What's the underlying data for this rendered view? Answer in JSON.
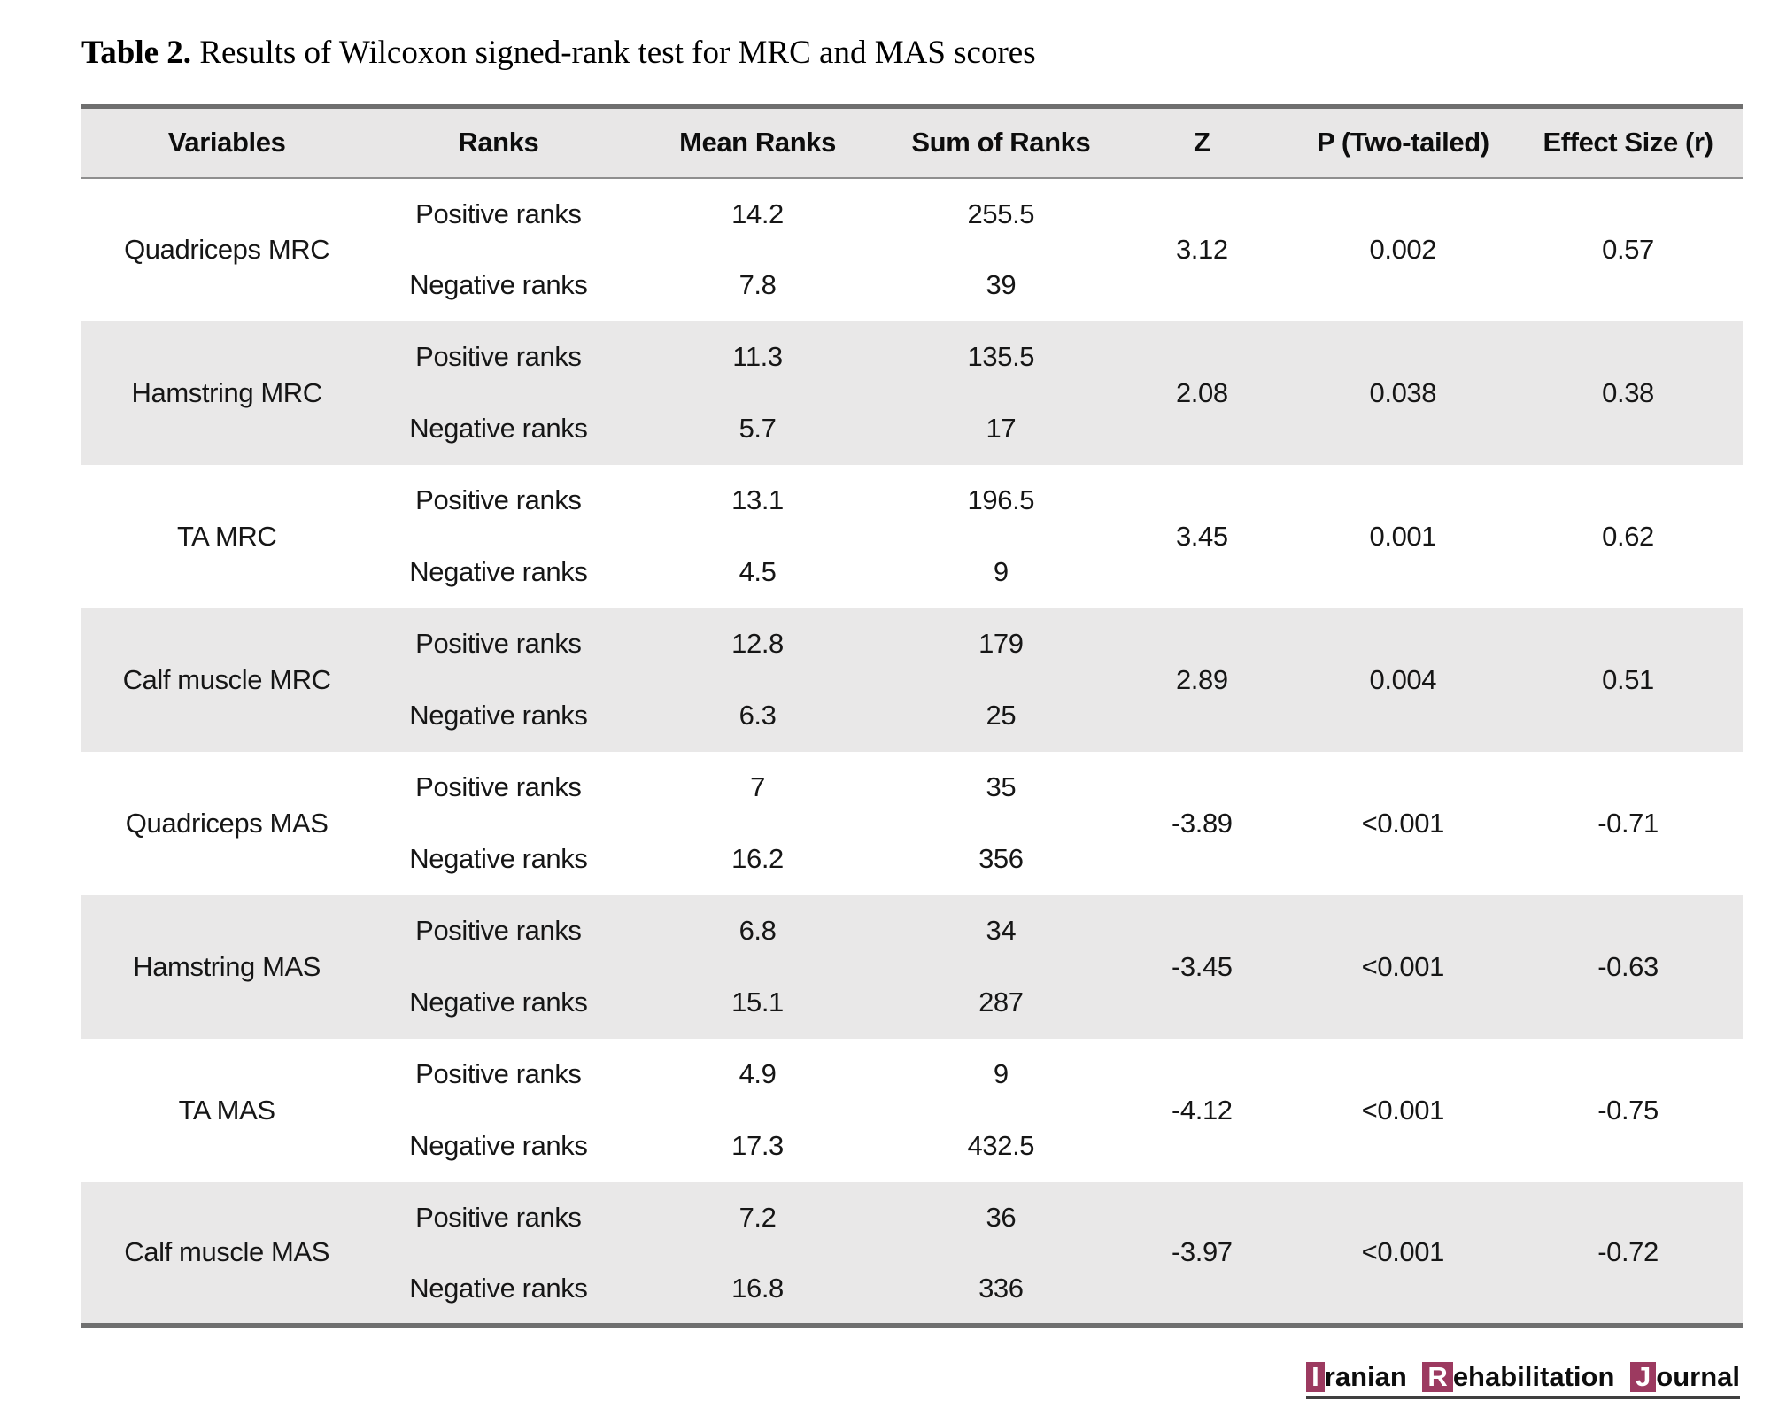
{
  "title": {
    "label": "Table 2.",
    "text": " Results of Wilcoxon signed-rank test for MRC and MAS scores"
  },
  "table": {
    "columns": [
      "Variables",
      "Ranks",
      "Mean Ranks",
      "Sum of Ranks",
      "Z",
      "P (Two-tailed)",
      "Effect Size (r)"
    ],
    "rank_labels": {
      "positive": "Positive ranks",
      "negative": "Negative ranks"
    },
    "rows": [
      {
        "variable": "Quadriceps MRC",
        "positive": {
          "mean_rank": "14.2",
          "sum_rank": "255.5"
        },
        "negative": {
          "mean_rank": "7.8",
          "sum_rank": "39"
        },
        "z": "3.12",
        "p": "0.002",
        "effect_size": "0.57"
      },
      {
        "variable": "Hamstring MRC",
        "positive": {
          "mean_rank": "11.3",
          "sum_rank": "135.5"
        },
        "negative": {
          "mean_rank": "5.7",
          "sum_rank": "17"
        },
        "z": "2.08",
        "p": "0.038",
        "effect_size": "0.38"
      },
      {
        "variable": "TA MRC",
        "positive": {
          "mean_rank": "13.1",
          "sum_rank": "196.5"
        },
        "negative": {
          "mean_rank": "4.5",
          "sum_rank": "9"
        },
        "z": "3.45",
        "p": "0.001",
        "effect_size": "0.62"
      },
      {
        "variable": "Calf muscle MRC",
        "positive": {
          "mean_rank": "12.8",
          "sum_rank": "179"
        },
        "negative": {
          "mean_rank": "6.3",
          "sum_rank": "25"
        },
        "z": "2.89",
        "p": "0.004",
        "effect_size": "0.51"
      },
      {
        "variable": "Quadriceps MAS",
        "positive": {
          "mean_rank": "7",
          "sum_rank": "35"
        },
        "negative": {
          "mean_rank": "16.2",
          "sum_rank": "356"
        },
        "z": "-3.89",
        "p": "<0.001",
        "effect_size": "-0.71"
      },
      {
        "variable": "Hamstring MAS",
        "positive": {
          "mean_rank": "6.8",
          "sum_rank": "34"
        },
        "negative": {
          "mean_rank": "15.1",
          "sum_rank": "287"
        },
        "z": "-3.45",
        "p": "<0.001",
        "effect_size": "-0.63"
      },
      {
        "variable": "TA MAS",
        "positive": {
          "mean_rank": "4.9",
          "sum_rank": "9"
        },
        "negative": {
          "mean_rank": "17.3",
          "sum_rank": "432.5"
        },
        "z": "-4.12",
        "p": "<0.001",
        "effect_size": "-0.75"
      },
      {
        "variable": "Calf muscle MAS",
        "positive": {
          "mean_rank": "7.2",
          "sum_rank": "36"
        },
        "negative": {
          "mean_rank": "16.8",
          "sum_rank": "336"
        },
        "z": "-3.97",
        "p": "<0.001",
        "effect_size": "-0.72"
      }
    ]
  },
  "footer": {
    "journal_words": [
      {
        "initial": "I",
        "rest": "ranian"
      },
      {
        "initial": "R",
        "rest": "ehabilitation"
      },
      {
        "initial": "J",
        "rest": "ournal"
      }
    ]
  },
  "colors": {
    "accent_maroon": "#9c3a60",
    "row_shade": "#e9e8e8",
    "header_shade": "#e8e7e7",
    "table_border": "#6f6f6f"
  }
}
